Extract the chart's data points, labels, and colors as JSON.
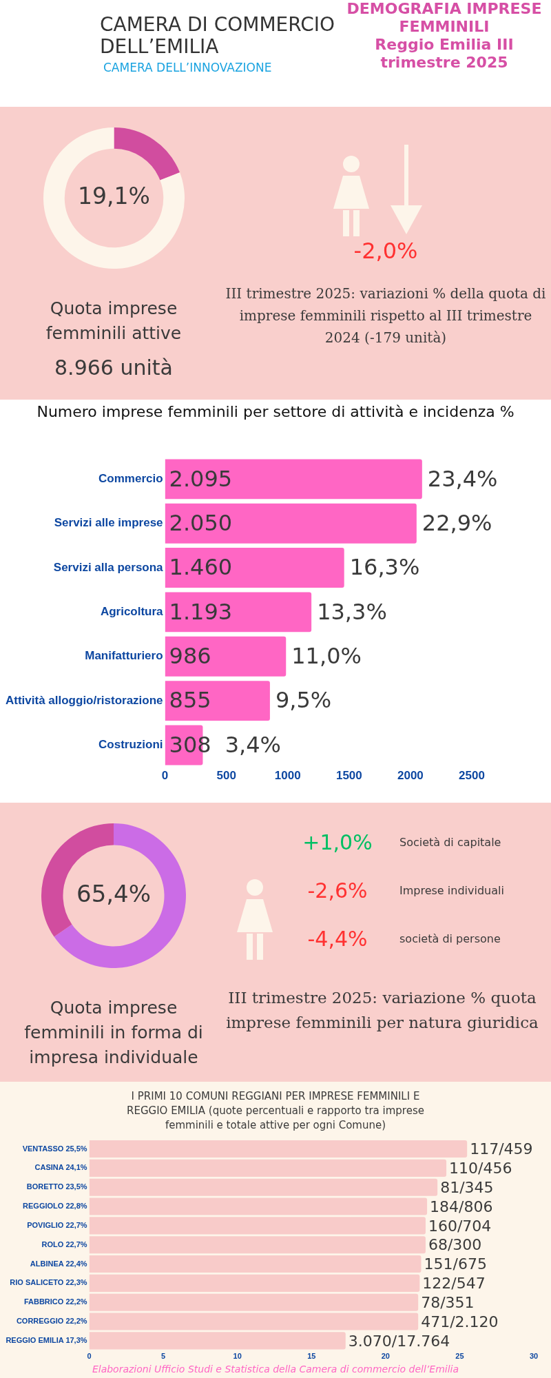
{
  "chart_data": [
    {
      "type": "other",
      "title": "DEMOGRAFIA IMPRESE FEMMINILI",
      "subtitle": "Reggio Emilia III trimestre 2025",
      "annotations": [
        "CAMERA DI COMMERCIO DELL’EMILIA",
        "CAMERA DELL’INNOVAZIONE"
      ]
    },
    {
      "type": "donut",
      "title": "Quota imprese femminili attive",
      "categories": [
        null,
        null
      ],
      "values": [
        19.1,
        80.9
      ],
      "colors": [
        "#d14d9f",
        "#fdf5ea"
      ],
      "value_labels": [
        "19,1%",
        null
      ],
      "annotations": [
        "8.966 unità"
      ]
    },
    {
      "type": "other",
      "annotations": [
        "-2,0%",
        "III trimestre 2025: variazioni % della quota di imprese femminili rispetto al III trimestre 2024 (-179 unità)"
      ]
    },
    {
      "type": "bar",
      "orientation": "horizontal",
      "title": "Numero imprese femminili per settore di attività e incidenza %",
      "categories": [
        "Commercio",
        "Servizi alle imprese",
        "Servizi alla persona",
        "Agricoltura",
        "Manifatturiero",
        "Attività alloggio/ristorazione",
        "Costruzioni"
      ],
      "values": [
        2095,
        2050,
        1460,
        1193,
        986,
        855,
        308
      ],
      "color": "#ff66c4",
      "value_labels": [
        "2.095",
        "2.050",
        "1.460",
        "1.193",
        "986",
        "855",
        "308"
      ],
      "xlim": [
        0,
        2500
      ],
      "xticks": [
        0,
        500,
        1000,
        1500,
        2000,
        2500
      ],
      "grid": false,
      "annotations": [
        {
          "text": "23,4%",
          "x": 2095,
          "y": "Commercio"
        },
        {
          "text": "22,9%",
          "x": 2050,
          "y": "Servizi alle imprese"
        },
        {
          "text": "16,3%",
          "x": 1460,
          "y": "Servizi alla persona"
        },
        {
          "text": "13,3%",
          "x": 1193,
          "y": "Agricoltura"
        },
        {
          "text": "11,0%",
          "x": 986,
          "y": "Manifatturiero"
        },
        {
          "text": "9,5%",
          "x": 855,
          "y": "Attività alloggio/ristorazione"
        },
        {
          "text": "3,4%",
          "x": 308,
          "y": "Costruzioni"
        }
      ]
    },
    {
      "type": "donut",
      "title": "Quota imprese femminili in forma di impresa individuale",
      "categories": [
        null,
        null
      ],
      "values": [
        65.4,
        34.6
      ],
      "colors": [
        "#cb6ce6",
        "#d14d9f"
      ],
      "value_labels": [
        "65,4%",
        null
      ]
    },
    {
      "type": "other",
      "title": "III trimestre 2025: variazione % quota imprese femminili per natura giuridica",
      "categories": [
        "Società di capitale",
        "Imprese individuali",
        "società di persone"
      ],
      "values": [
        1.0,
        -2.6,
        -4.4
      ],
      "value_labels": [
        "+1,0%",
        "-2,6%",
        "-4,4%"
      ]
    },
    {
      "type": "bar",
      "orientation": "horizontal",
      "title": "I PRIMI 10 COMUNI REGGIANI PER IMPRESE FEMMINILI E REGGIO EMILIA (quote percentuali e rapporto tra imprese femminili e totale attive per ogni Comune)",
      "categories": [
        "VENTASSO 25,5%",
        "CASINA 24,1%",
        "BORETTO 23,5%",
        "REGGIOLO 22,8%",
        "POVIGLIO 22,7%",
        "ROLO 22,7%",
        "ALBINEA 22,4%",
        "RIO SALICETO 22,3%",
        "FABBRICO 22,2%",
        "CORREGGIO 22,2%",
        "REGGIO EMILIA 17,3%"
      ],
      "values": [
        25.5,
        24.1,
        23.5,
        22.8,
        22.7,
        22.7,
        22.4,
        22.3,
        22.2,
        22.2,
        17.3
      ],
      "color": "#f8cbc9",
      "value_labels": [
        "117/459",
        "110/456",
        "81/345",
        "184/806",
        "160/704",
        "68/300",
        "151/675",
        "122/547",
        "78/351",
        "471/2.120",
        "3.070/17.764"
      ],
      "xlim": [
        0,
        30
      ],
      "xticks": [
        0,
        5,
        10,
        15,
        20,
        25,
        30
      ],
      "grid": false,
      "annotations": [
        "Elaborazioni Ufficio Studi e Statistica della Camera di commercio dell’Emilia"
      ]
    }
  ]
}
